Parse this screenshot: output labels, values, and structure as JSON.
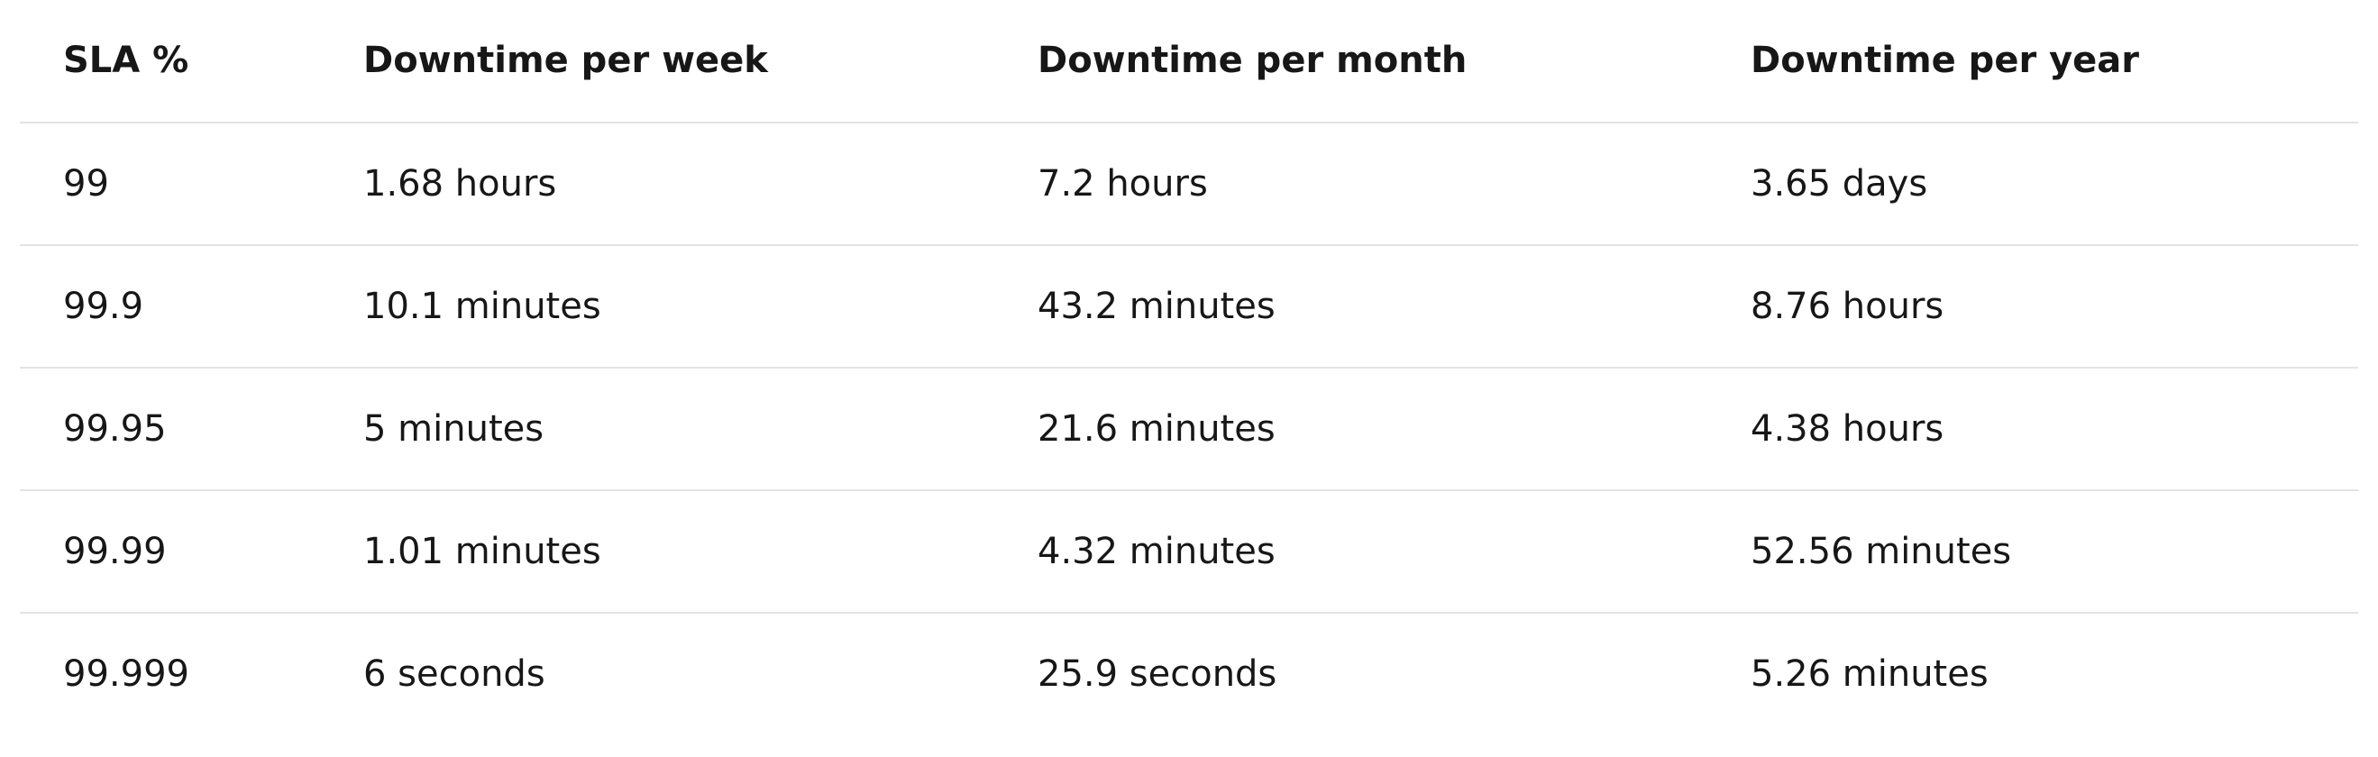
{
  "table": {
    "headers": [
      "SLA %",
      "Downtime per week",
      "Downtime per month",
      "Downtime per year"
    ],
    "rows": [
      [
        "99",
        "1.68 hours",
        "7.2 hours",
        "3.65 days"
      ],
      [
        "99.9",
        "10.1 minutes",
        "43.2 minutes",
        "8.76 hours"
      ],
      [
        "99.95",
        "5 minutes",
        "21.6 minutes",
        "4.38 hours"
      ],
      [
        "99.99",
        "1.01 minutes",
        "4.32 minutes",
        "52.56 minutes"
      ],
      [
        "99.999",
        "6 seconds",
        "25.9 seconds",
        "5.26 minutes"
      ]
    ]
  }
}
